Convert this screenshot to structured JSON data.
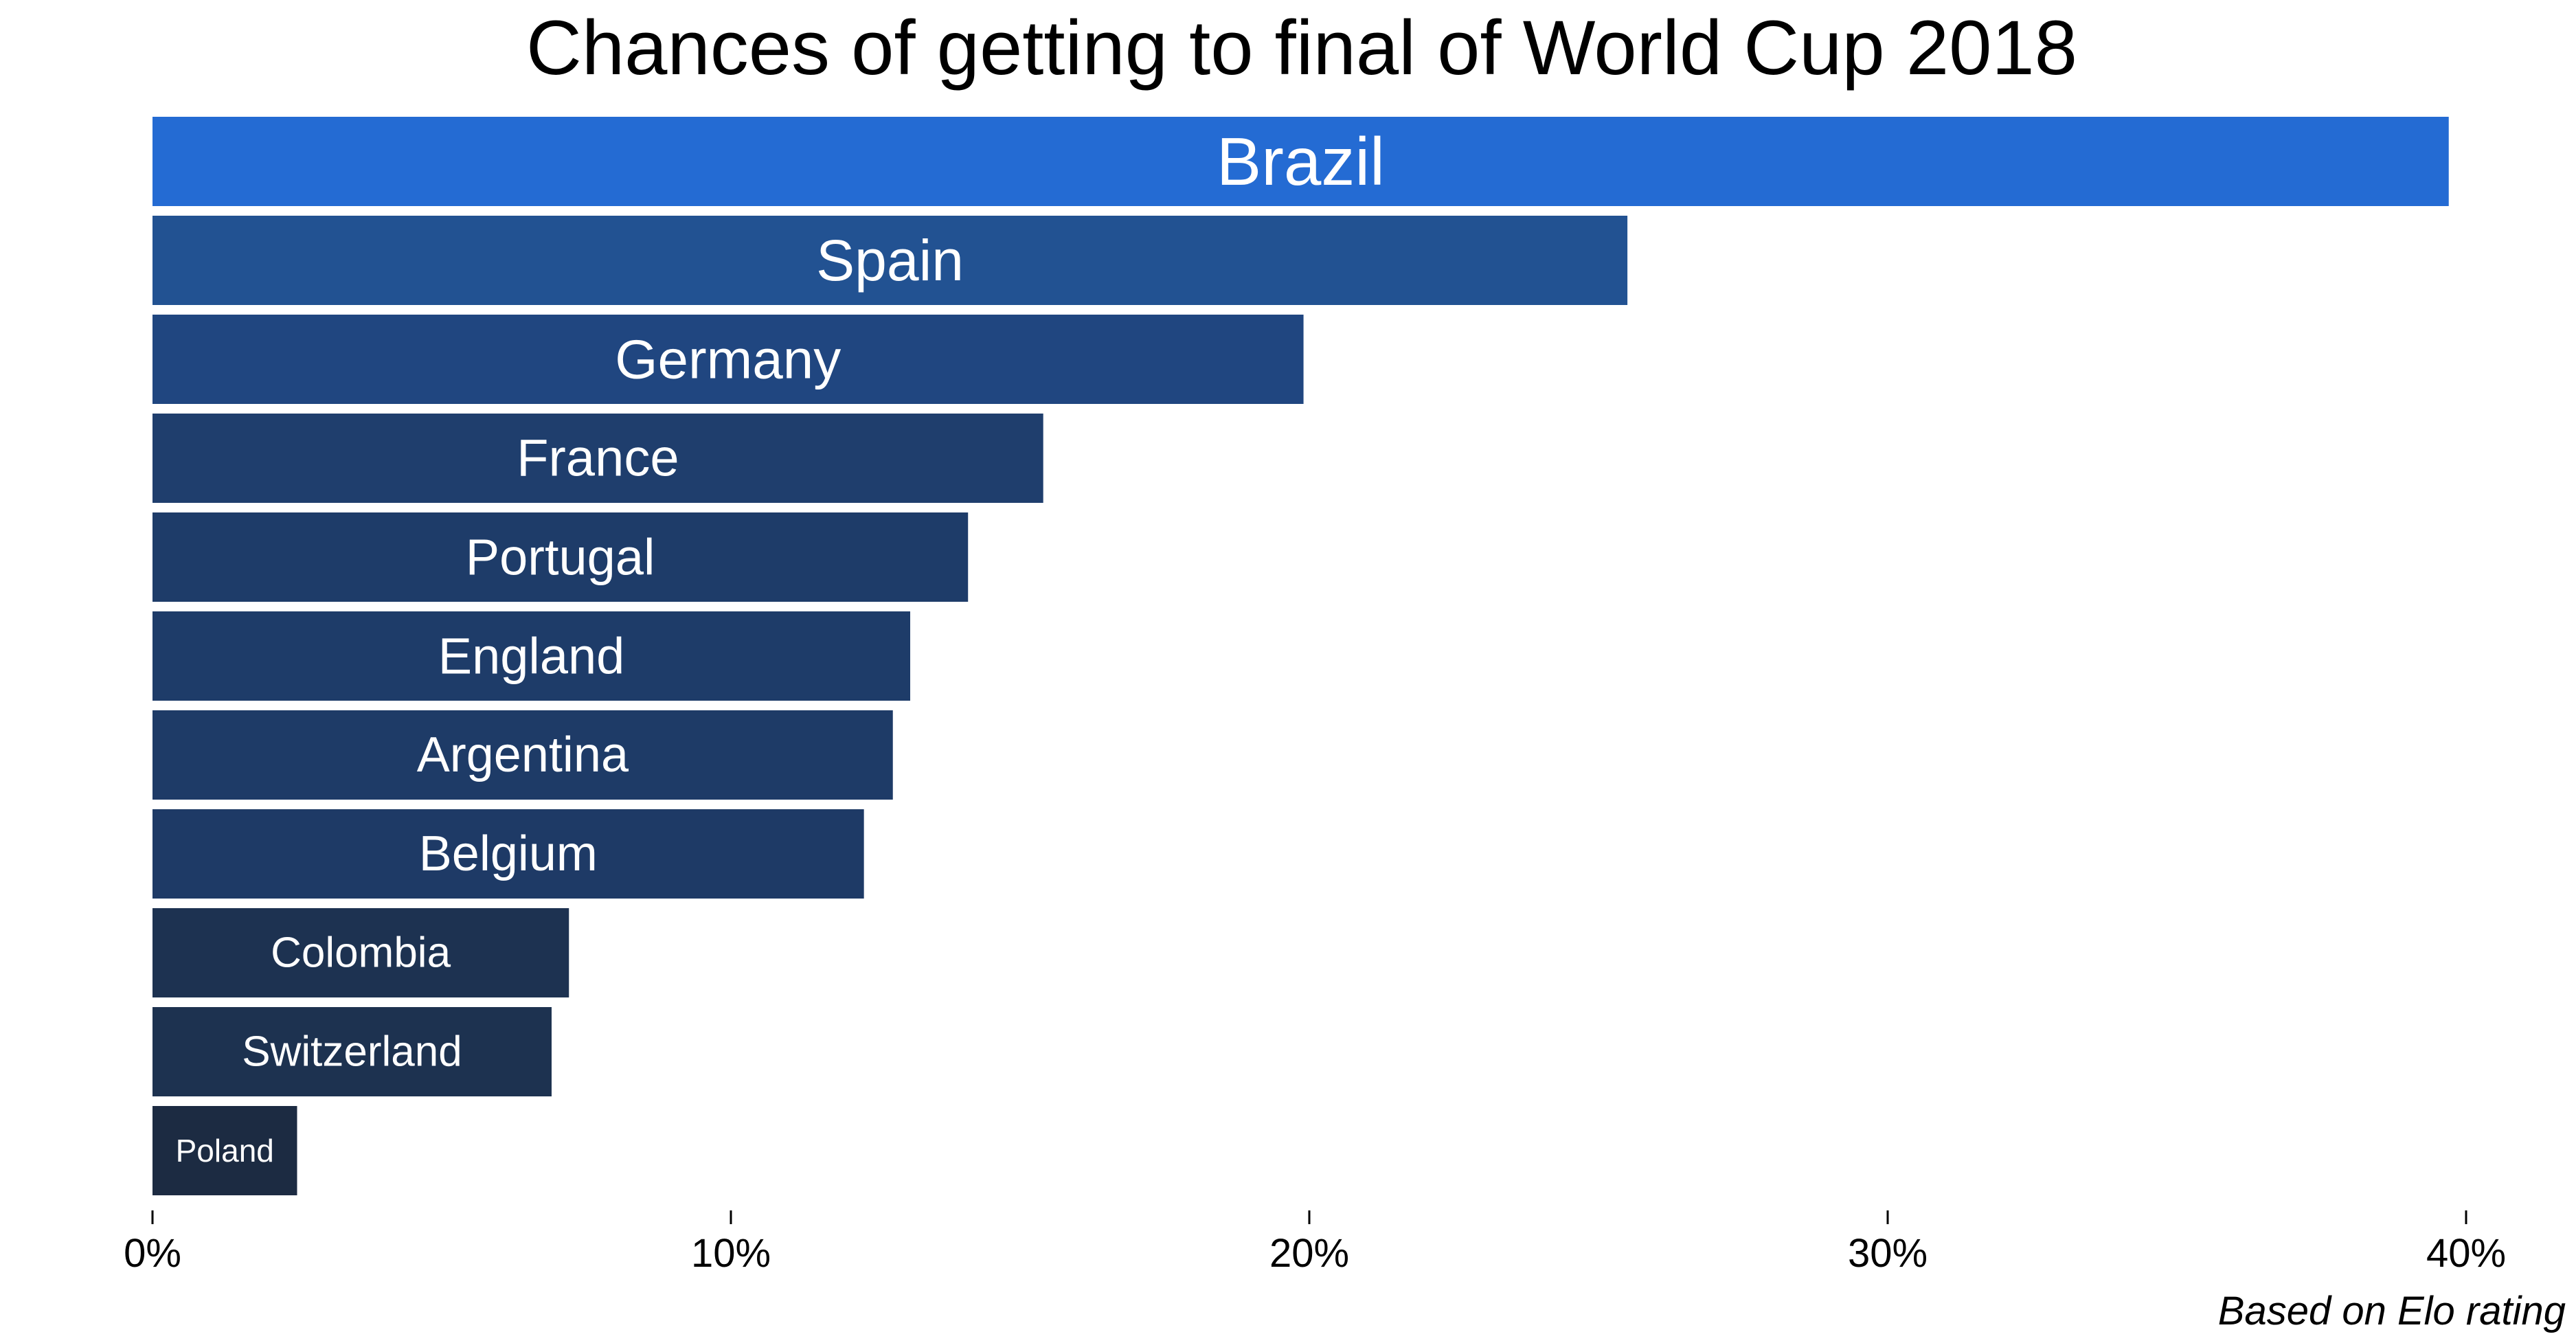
{
  "chart_data": {
    "type": "bar",
    "orientation": "horizontal",
    "title": "Chances of getting to final of World Cup 2018",
    "caption": "Based on Elo rating",
    "categories": [
      "Brazil",
      "Spain",
      "Germany",
      "France",
      "Portugal",
      "England",
      "Argentina",
      "Belgium",
      "Colombia",
      "Switzerland",
      "Poland"
    ],
    "values": [
      39.7,
      25.5,
      19.9,
      15.4,
      14.1,
      13.1,
      12.8,
      12.3,
      7.2,
      6.9,
      2.5
    ],
    "unit": "%",
    "xlim": [
      0,
      40
    ],
    "xticks": [
      0,
      10,
      20,
      30,
      40
    ],
    "xtick_labels": [
      "0%",
      "10%",
      "20%",
      "30%",
      "40%"
    ],
    "grid": false,
    "legend": "none",
    "colors": {
      "Brazil": "#246bd3",
      "Spain": "#225292",
      "Germany": "#204680",
      "France": "#1f3e6d",
      "Portugal": "#1e3c69",
      "England": "#1e3c69",
      "Argentina": "#1e3b67",
      "Belgium": "#1e3a66",
      "Colombia": "#1d3251",
      "Switzerland": "#1d3250",
      "Poland": "#1c2b42"
    }
  }
}
